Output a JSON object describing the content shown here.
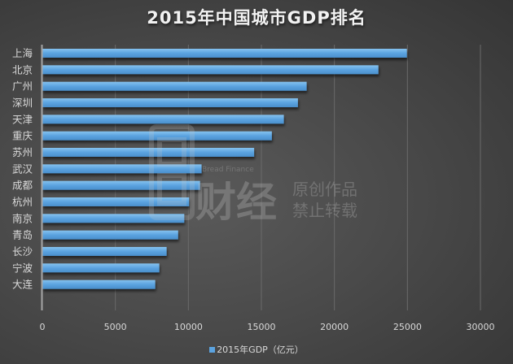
{
  "chart_data": {
    "type": "bar",
    "orientation": "horizontal",
    "title": "2015年中国城市GDP排名",
    "categories": [
      "上海",
      "北京",
      "广州",
      "深圳",
      "天津",
      "重庆",
      "苏州",
      "武汉",
      "成都",
      "杭州",
      "南京",
      "青岛",
      "长沙",
      "宁波",
      "大连"
    ],
    "series": [
      {
        "name": "2015年GDP（亿元）",
        "values": [
          24965,
          23015,
          18100,
          17503,
          16538,
          15717,
          14504,
          10905,
          10801,
          10053,
          9720,
          9300,
          8510,
          8011,
          7732
        ],
        "color": "#5ba3e0"
      }
    ],
    "xlim": [
      0,
      30000
    ],
    "xticks": [
      "0",
      "5000",
      "10000",
      "15000",
      "20000",
      "25000",
      "30000"
    ],
    "xlabel": "",
    "ylabel": "",
    "grid": "vertical",
    "legend": "bottom-center"
  },
  "watermark": {
    "brand_en": "Bread Finance",
    "brand_cn": "财经",
    "line1": "原创作品",
    "line2": "禁止转载"
  },
  "colors": {
    "bar": "#5ba3e0",
    "bar_light": "#7cbcec",
    "grid": "#6a6a6a",
    "axis": "#a6a6a6",
    "text": "#d9d9d9"
  }
}
